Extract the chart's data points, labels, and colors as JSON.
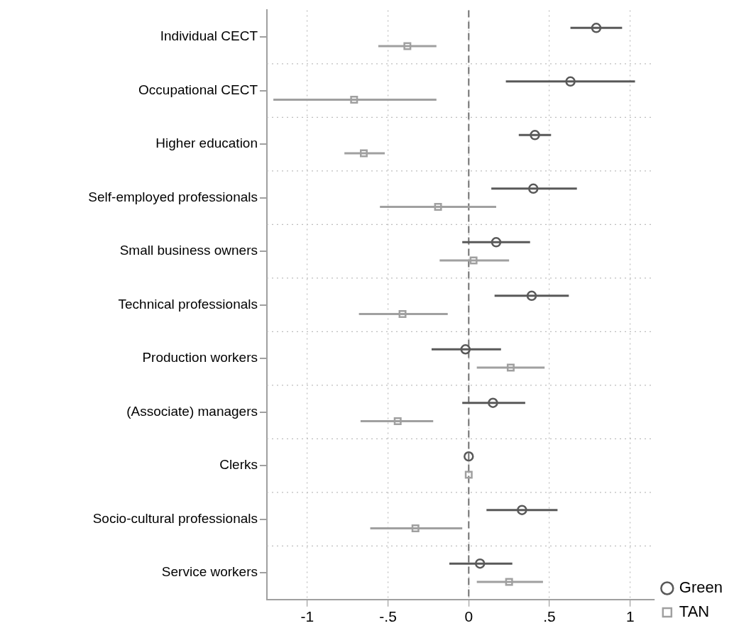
{
  "chart_data": {
    "type": "scatter",
    "orientation": "horizontal",
    "categories": [
      "Individual CECT",
      "Occupational CECT",
      "Higher education",
      "Self-employed professionals",
      "Small business owners",
      "Technical professionals",
      "Production workers",
      "(Associate) managers",
      "Clerks",
      "Socio-cultural professionals",
      "Service workers"
    ],
    "series": [
      {
        "name": "Green",
        "color": "#595959",
        "marker": "circle",
        "values": [
          0.79,
          0.63,
          0.41,
          0.4,
          0.17,
          0.39,
          -0.02,
          0.15,
          0,
          0.33,
          0.07
        ],
        "errors": [
          [
            0.63,
            0.95
          ],
          [
            0.23,
            1.03
          ],
          [
            0.31,
            0.51
          ],
          [
            0.14,
            0.67
          ],
          [
            -0.04,
            0.38
          ],
          [
            0.16,
            0.62
          ],
          [
            -0.23,
            0.2
          ],
          [
            -0.04,
            0.35
          ],
          null,
          [
            0.11,
            0.55
          ],
          [
            -0.12,
            0.27
          ]
        ]
      },
      {
        "name": "TAN",
        "color": "#a0a0a0",
        "marker": "square",
        "values": [
          -0.38,
          -0.71,
          -0.65,
          -0.19,
          0.03,
          -0.41,
          0.26,
          -0.44,
          0,
          -0.33,
          0.25
        ],
        "errors": [
          [
            -0.56,
            -0.2
          ],
          [
            -1.21,
            -0.2
          ],
          [
            -0.77,
            -0.52
          ],
          [
            -0.55,
            0.17
          ],
          [
            -0.18,
            0.25
          ],
          [
            -0.68,
            -0.13
          ],
          [
            0.05,
            0.47
          ],
          [
            -0.67,
            -0.22
          ],
          null,
          [
            -0.61,
            -0.04
          ],
          [
            0.05,
            0.46
          ]
        ]
      }
    ],
    "xlim": [
      -1.25,
      1.15
    ],
    "xticks": [
      {
        "value": -1,
        "label": "-1"
      },
      {
        "value": -0.5,
        "label": "-.5"
      },
      {
        "value": 0,
        "label": "0"
      },
      {
        "value": 0.5,
        "label": ".5"
      },
      {
        "value": 1,
        "label": "1"
      }
    ],
    "ref_lines": [
      {
        "axis": "x",
        "value": 0,
        "color": "#707070",
        "line_style": "dashed"
      }
    ],
    "grid": true,
    "legend": "bottom right"
  }
}
